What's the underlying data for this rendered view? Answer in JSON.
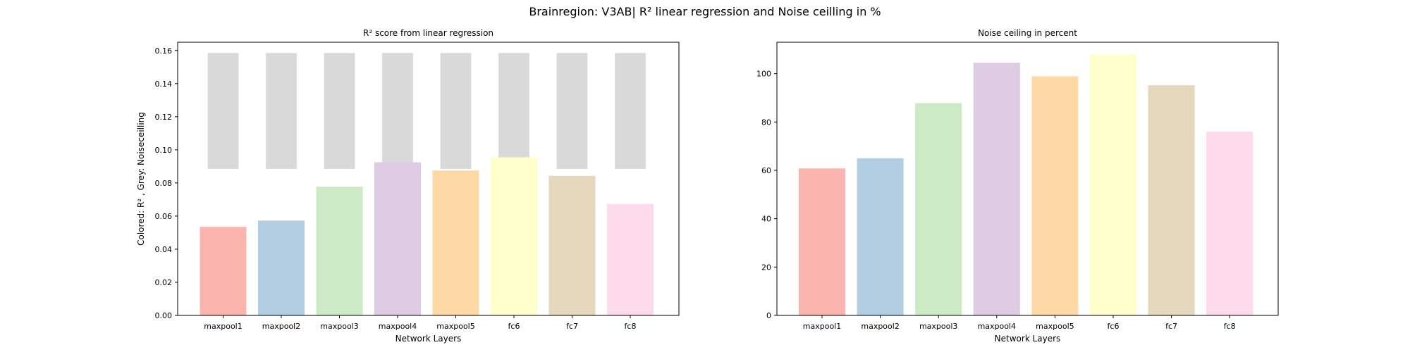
{
  "figure": {
    "title": "Brainregion: V3AB| R² linear regression and Noise ceilling in %"
  },
  "chart_data": [
    {
      "type": "bar",
      "title": "R² score from linear regression",
      "xlabel": "Network Layers",
      "ylabel": "Colored: R² , Grey: Noiseceilling",
      "categories": [
        "maxpool1",
        "maxpool2",
        "maxpool3",
        "maxpool4",
        "maxpool5",
        "fc6",
        "fc7",
        "fc8"
      ],
      "series": [
        {
          "values": [
            0.0535,
            0.0573,
            0.0777,
            0.0925,
            0.0875,
            0.0955,
            0.0843,
            0.0673
          ]
        },
        {
          "values": [
            0.07,
            0.07,
            0.07,
            0.07,
            0.07,
            0.07,
            0.07,
            0.07
          ],
          "base": 0.0885
        }
      ],
      "noise_ceiling_range": [
        0.0885,
        0.1585
      ],
      "ylim": [
        0,
        0.165
      ],
      "yticks": [
        0.0,
        0.02,
        0.04,
        0.06,
        0.08,
        0.1,
        0.12,
        0.14,
        0.16
      ],
      "ytick_labels": [
        "0.00",
        "0.02",
        "0.04",
        "0.06",
        "0.08",
        "0.10",
        "0.12",
        "0.14",
        "0.16"
      ],
      "grid": false
    },
    {
      "type": "bar",
      "title": "Noise ceiling in percent",
      "xlabel": "Network Layers",
      "ylabel": "",
      "categories": [
        "maxpool1",
        "maxpool2",
        "maxpool3",
        "maxpool4",
        "maxpool5",
        "fc6",
        "fc7",
        "fc8"
      ],
      "series": [
        {
          "values": [
            60.8,
            65.0,
            87.8,
            104.5,
            98.9,
            107.9,
            95.2,
            76.0
          ]
        }
      ],
      "ylim": [
        0,
        113
      ],
      "yticks": [
        0,
        20,
        40,
        60,
        80,
        100
      ],
      "ytick_labels": [
        "0",
        "20",
        "40",
        "60",
        "80",
        "100"
      ],
      "grid": false
    }
  ],
  "colors": {
    "bars": [
      "#fbb4ae",
      "#b3cde3",
      "#ccebc5",
      "#decbe4",
      "#fed9a6",
      "#ffffcc",
      "#e5d8bd",
      "#fddaec"
    ],
    "noise_ceiling": "#d9d9d9",
    "axes": "#000000"
  }
}
